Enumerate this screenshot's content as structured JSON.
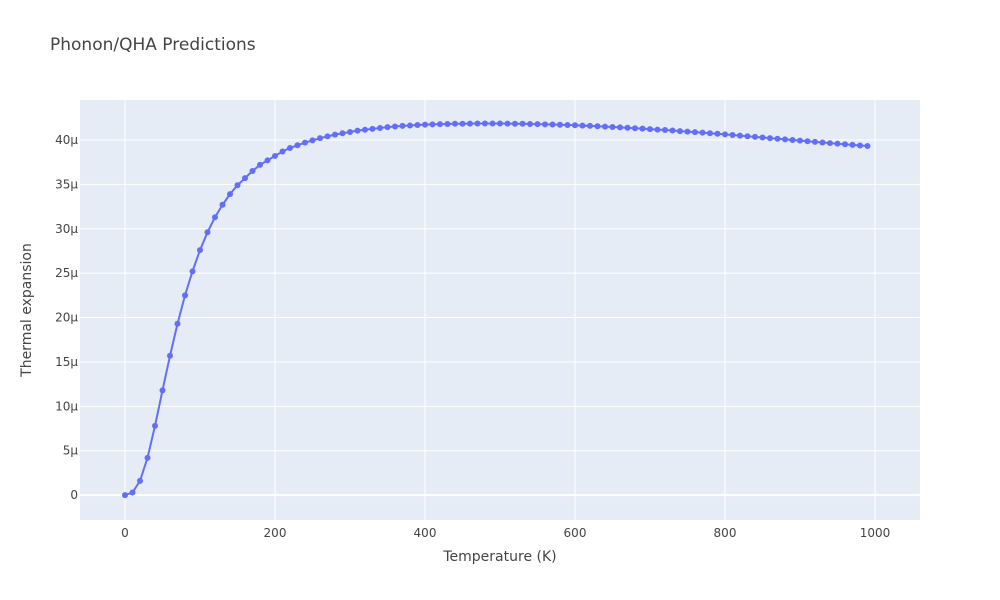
{
  "chart_data": {
    "type": "scatter",
    "mode": "lines+markers",
    "title": "Phonon/QHA Predictions",
    "xlabel": "Temperature (K)",
    "ylabel": "Thermal expansion",
    "xlim": [
      -60,
      1060
    ],
    "ylim": [
      -2.8e-06,
      4.45e-05
    ],
    "x_ticks": [
      0,
      200,
      400,
      600,
      800,
      1000
    ],
    "x_tick_labels": [
      "0",
      "200",
      "400",
      "600",
      "800",
      "1000"
    ],
    "y_ticks": [
      0,
      5e-06,
      1e-05,
      1.5e-05,
      2e-05,
      2.5e-05,
      3e-05,
      3.5e-05,
      4e-05
    ],
    "y_tick_labels": [
      "0",
      "5µ",
      "10µ",
      "15µ",
      "20µ",
      "25µ",
      "30µ",
      "35µ",
      "40µ"
    ],
    "grid": true,
    "colors": {
      "series": "#636efa",
      "plot_bg": "#e5ecf6",
      "grid": "#ffffff",
      "text": "#444444"
    },
    "series": [
      {
        "x": [
          0,
          10,
          20,
          30,
          40,
          50,
          60,
          70,
          80,
          90,
          100,
          110,
          120,
          130,
          140,
          150,
          160,
          170,
          180,
          190,
          200,
          210,
          220,
          230,
          240,
          250,
          260,
          270,
          280,
          290,
          300,
          310,
          320,
          330,
          340,
          350,
          360,
          370,
          380,
          390,
          400,
          410,
          420,
          430,
          440,
          450,
          460,
          470,
          480,
          490,
          500,
          510,
          520,
          530,
          540,
          550,
          560,
          570,
          580,
          590,
          600,
          610,
          620,
          630,
          640,
          650,
          660,
          670,
          680,
          690,
          700,
          710,
          720,
          730,
          740,
          750,
          760,
          770,
          780,
          790,
          800,
          810,
          820,
          830,
          840,
          850,
          860,
          870,
          880,
          890,
          900,
          910,
          920,
          930,
          940,
          950,
          960,
          970,
          980,
          990
        ],
        "y": [
          0,
          3e-07,
          1.6e-06,
          4.2e-06,
          7.8e-06,
          1.18e-05,
          1.57e-05,
          1.93e-05,
          2.25e-05,
          2.52e-05,
          2.76e-05,
          2.96e-05,
          3.13e-05,
          3.27e-05,
          3.39e-05,
          3.49e-05,
          3.57e-05,
          3.65e-05,
          3.72e-05,
          3.77e-05,
          3.82e-05,
          3.87e-05,
          3.91e-05,
          3.94e-05,
          3.97e-05,
          3.995e-05,
          4.02e-05,
          4.04e-05,
          4.06e-05,
          4.075e-05,
          4.09e-05,
          4.105e-05,
          4.115e-05,
          4.125e-05,
          4.135e-05,
          4.145e-05,
          4.152e-05,
          4.158e-05,
          4.163e-05,
          4.168e-05,
          4.172e-05,
          4.175e-05,
          4.178e-05,
          4.18e-05,
          4.182e-05,
          4.183e-05,
          4.184e-05,
          4.185e-05,
          4.185e-05,
          4.185e-05,
          4.185e-05,
          4.184e-05,
          4.183e-05,
          4.182e-05,
          4.18e-05,
          4.178e-05,
          4.176e-05,
          4.174e-05,
          4.171e-05,
          4.168e-05,
          4.165e-05,
          4.162e-05,
          4.158e-05,
          4.154e-05,
          4.15e-05,
          4.146e-05,
          4.142e-05,
          4.137e-05,
          4.132e-05,
          4.127e-05,
          4.122e-05,
          4.117e-05,
          4.112e-05,
          4.106e-05,
          4.1e-05,
          4.094e-05,
          4.088e-05,
          4.082e-05,
          4.076e-05,
          4.07e-05,
          4.063e-05,
          4.056e-05,
          4.049e-05,
          4.042e-05,
          4.035e-05,
          4.028e-05,
          4.021e-05,
          4.014e-05,
          4.007e-05,
          4e-05,
          3.993e-05,
          3.986e-05,
          3.979e-05,
          3.972e-05,
          3.965e-05,
          3.958e-05,
          3.951e-05,
          3.944e-05,
          3.938e-05,
          3.932e-05
        ]
      }
    ]
  }
}
